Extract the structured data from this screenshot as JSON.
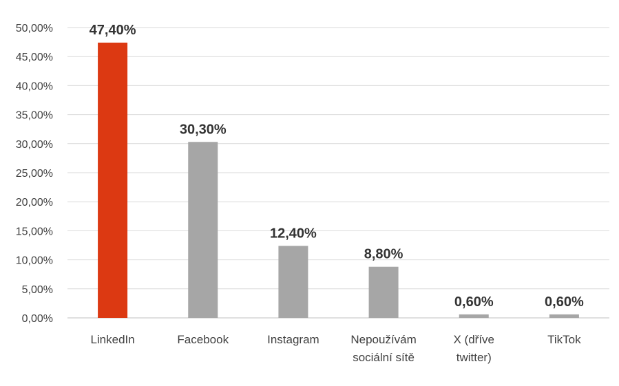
{
  "chart_data": {
    "type": "bar",
    "categories": [
      [
        "LinkedIn"
      ],
      [
        "Facebook"
      ],
      [
        "Instagram"
      ],
      [
        "Nepoužívám",
        "sociální sítě"
      ],
      [
        "X (dříve",
        "twitter)"
      ],
      [
        "TikTok"
      ]
    ],
    "values": [
      47.4,
      30.3,
      12.4,
      8.8,
      0.6,
      0.6
    ],
    "data_labels": [
      "47,40%",
      "30,30%",
      "12,40%",
      "8,80%",
      "0,60%",
      "0,60%"
    ],
    "y_ticks": [
      "0,00%",
      "5,00%",
      "10,00%",
      "15,00%",
      "20,00%",
      "25,00%",
      "30,00%",
      "35,00%",
      "40,00%",
      "45,00%",
      "50,00%"
    ],
    "ylim": [
      0,
      50
    ],
    "grid": true,
    "legend": "none",
    "colors": {
      "highlight": "#dc3912",
      "default": "#a6a6a6",
      "grid": "#d9d9d9"
    },
    "highlight_index": 0
  }
}
